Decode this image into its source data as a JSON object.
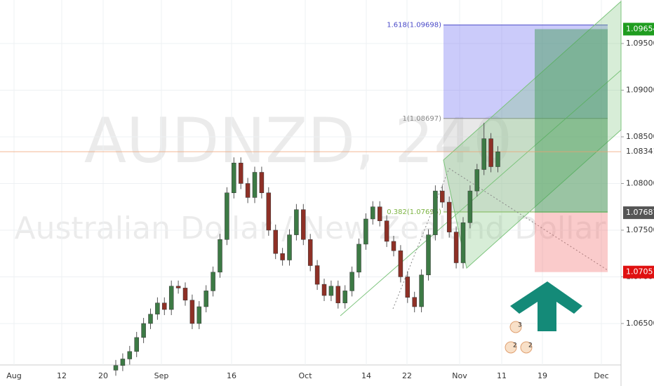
{
  "chart_data": {
    "type": "candlestick",
    "title": "AUDNZD, 240",
    "subtitle": "Australian Dollar / New Zealand Dollar",
    "x_labels": [
      "Aug",
      "12",
      "20",
      "Sep",
      "16",
      "Oct",
      "14",
      "22",
      "Nov",
      "11",
      "19",
      "Dec"
    ],
    "open": [
      1.06,
      1.0605,
      1.0612,
      1.062,
      1.0635,
      1.065,
      1.066,
      1.0672,
      1.0665,
      1.069,
      1.0688,
      1.0675,
      1.065,
      1.0668,
      1.0685,
      1.0705,
      1.074,
      1.079,
      1.0822,
      1.08,
      1.0785,
      1.0812,
      1.079,
      1.075,
      1.0725,
      1.0718,
      1.0745,
      1.0772,
      1.074,
      1.0712,
      1.0692,
      1.068,
      1.069,
      1.0672,
      1.0685,
      1.0705,
      1.0735,
      1.0762,
      1.0775,
      1.076,
      1.0738,
      1.0728,
      1.07,
      1.0678,
      1.0668,
      1.0702,
      1.0745,
      1.0792,
      1.078,
      1.0748,
      1.0715,
      1.0758,
      1.0792,
      1.0815,
      1.0848,
      1.0818
    ],
    "high": [
      1.0611,
      1.0618,
      1.0626,
      1.0641,
      1.0656,
      1.0666,
      1.0678,
      1.0678,
      1.0696,
      1.0696,
      1.0694,
      1.0681,
      1.0674,
      1.0691,
      1.0711,
      1.0746,
      1.0796,
      1.0828,
      1.0828,
      1.0806,
      1.0818,
      1.0818,
      1.0796,
      1.0756,
      1.0731,
      1.0751,
      1.0778,
      1.0778,
      1.0746,
      1.0718,
      1.0698,
      1.0696,
      1.0696,
      1.0691,
      1.0711,
      1.0741,
      1.0768,
      1.0781,
      1.0781,
      1.0766,
      1.0744,
      1.0734,
      1.0706,
      1.0684,
      1.0708,
      1.0751,
      1.0798,
      1.0798,
      1.0786,
      1.0754,
      1.0764,
      1.0798,
      1.0821,
      1.0865,
      1.0854,
      1.084
    ],
    "low": [
      1.0594,
      1.0599,
      1.0606,
      1.0614,
      1.0629,
      1.0644,
      1.0654,
      1.0659,
      1.0659,
      1.0682,
      1.0669,
      1.0644,
      1.0644,
      1.0662,
      1.0679,
      1.0699,
      1.0734,
      1.0784,
      1.0794,
      1.0779,
      1.0779,
      1.0784,
      1.0744,
      1.0719,
      1.0712,
      1.0712,
      1.0739,
      1.0734,
      1.0706,
      1.0686,
      1.0674,
      1.0674,
      1.0666,
      1.0666,
      1.0679,
      1.0699,
      1.0729,
      1.0756,
      1.0754,
      1.0732,
      1.0722,
      1.0694,
      1.0672,
      1.0662,
      1.0662,
      1.0696,
      1.0739,
      1.0774,
      1.0742,
      1.0709,
      1.0709,
      1.0752,
      1.0786,
      1.0809,
      1.0812,
      1.0812
    ],
    "close": [
      1.0605,
      1.0612,
      1.062,
      1.0635,
      1.065,
      1.066,
      1.0672,
      1.0665,
      1.069,
      1.0688,
      1.0675,
      1.065,
      1.0668,
      1.0685,
      1.0705,
      1.074,
      1.079,
      1.0822,
      1.08,
      1.0785,
      1.0812,
      1.079,
      1.075,
      1.0725,
      1.0718,
      1.0745,
      1.0772,
      1.074,
      1.0712,
      1.0692,
      1.068,
      1.069,
      1.0672,
      1.0685,
      1.0705,
      1.0735,
      1.0762,
      1.0775,
      1.076,
      1.0738,
      1.0728,
      1.07,
      1.0678,
      1.0668,
      1.0702,
      1.0745,
      1.0792,
      1.078,
      1.0748,
      1.0715,
      1.0758,
      1.0792,
      1.0815,
      1.0848,
      1.0818,
      1.0834
    ],
    "up_color": "#3d7a45",
    "down_color": "#8e3026",
    "ylim": [
      1.06056,
      1.09966
    ],
    "yticks": [
      {
        "value": 1.095,
        "label": "1.09500"
      },
      {
        "value": 1.09,
        "label": "1.09000"
      },
      {
        "value": 1.085,
        "label": "1.08500"
      },
      {
        "value": 1.08,
        "label": "1.08000"
      },
      {
        "value": 1.075,
        "label": "1.07500"
      },
      {
        "value": 1.07,
        "label": "1.07000"
      },
      {
        "value": 1.065,
        "label": "1.06500"
      }
    ],
    "grid": true,
    "current_price": 1.08341,
    "fib_levels": [
      {
        "value": 1.09698,
        "label": "1.618(1.09698)"
      },
      {
        "value": 1.08697,
        "label": "1(1.08697)"
      },
      {
        "value": 1.07695,
        "label": "0.382(1.07695)"
      }
    ],
    "position": {
      "target": 1.09654,
      "entry": 1.07687,
      "stop": 1.07051
    },
    "badges": [
      "3",
      "2",
      "2"
    ]
  }
}
